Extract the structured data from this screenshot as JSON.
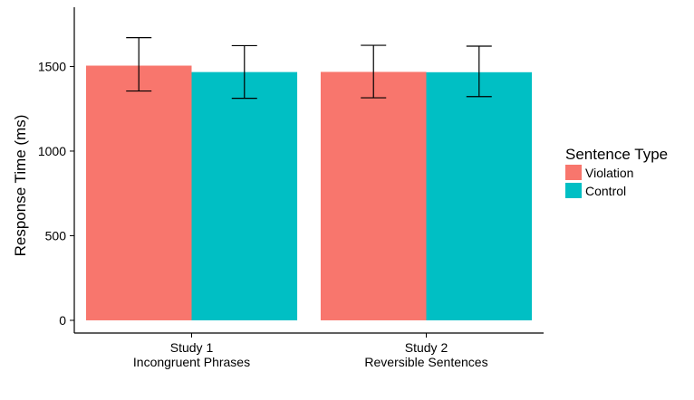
{
  "chart_data": {
    "type": "bar",
    "categories": [
      [
        "Study 1",
        "Incongruent Phrases"
      ],
      [
        "Study 2",
        "Reversible Sentences"
      ]
    ],
    "series": [
      {
        "name": "Violation",
        "color": "#F8766D",
        "values": [
          1505,
          1468
        ],
        "error_low": [
          1355,
          1315
        ],
        "error_high": [
          1670,
          1625
        ]
      },
      {
        "name": "Control",
        "color": "#00BFC4",
        "values": [
          1467,
          1466
        ],
        "error_low": [
          1312,
          1322
        ],
        "error_high": [
          1623,
          1620
        ]
      }
    ],
    "title": "",
    "xlabel": "",
    "ylabel": "Response Time (ms)",
    "ylim": [
      -75,
      1850
    ],
    "yticks": [
      0,
      500,
      1000,
      1500
    ],
    "grid": false,
    "legend": {
      "title": "Sentence Type",
      "position": "right"
    }
  }
}
